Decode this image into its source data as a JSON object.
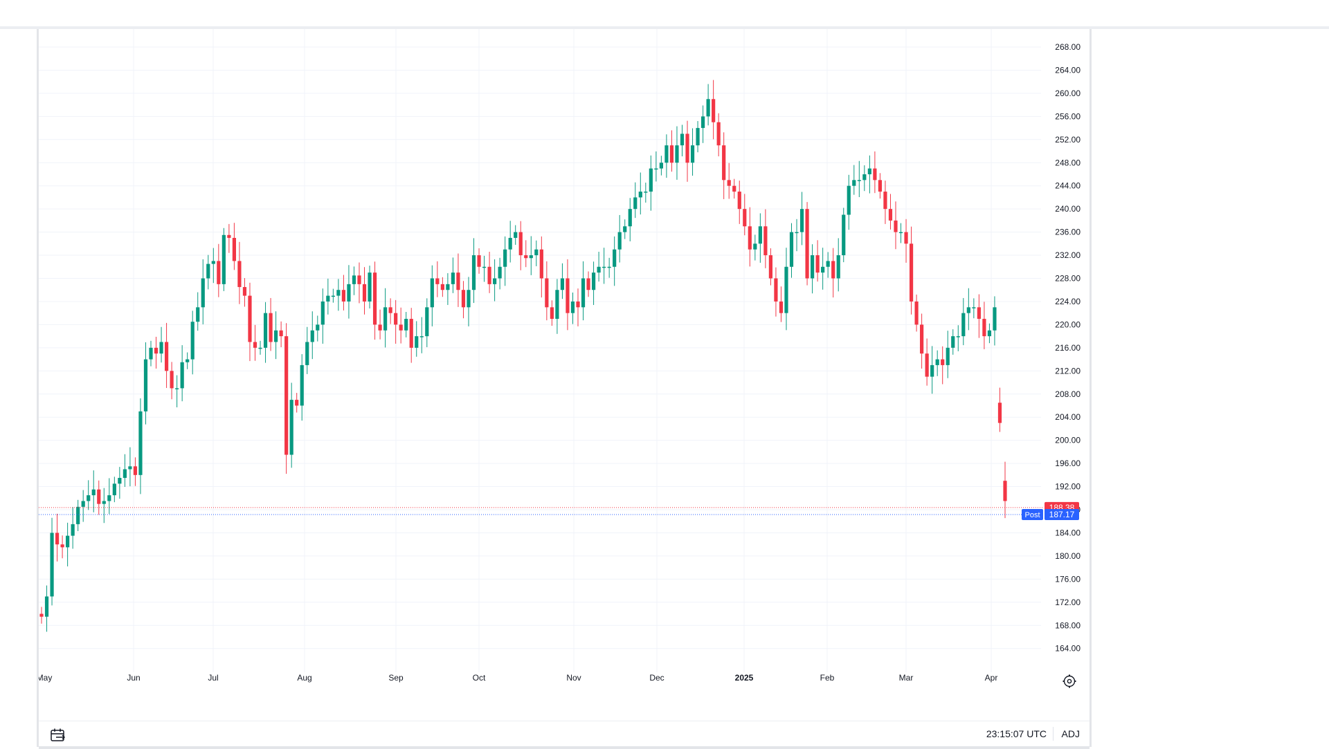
{
  "footer": {
    "clock": "23:15:07 UTC",
    "adj_label": "ADJ"
  },
  "colors": {
    "up": "#089981",
    "down": "#f23645",
    "post": "#2962ff",
    "grid": "#f0f3fa",
    "text": "#131722"
  },
  "icons": {
    "date_range": "calendar-range-icon",
    "settings": "gear-icon"
  },
  "chart_data": {
    "type": "candlestick",
    "title": "",
    "ylim": [
      160,
      270
    ],
    "grid": true,
    "y_ticks": [
      "268.00",
      "264.00",
      "260.00",
      "256.00",
      "252.00",
      "248.00",
      "244.00",
      "240.00",
      "236.00",
      "232.00",
      "228.00",
      "224.00",
      "220.00",
      "216.00",
      "212.00",
      "208.00",
      "204.00",
      "200.00",
      "196.00",
      "192.00",
      "188.00",
      "184.00",
      "180.00",
      "176.00",
      "172.00",
      "168.00",
      "164.00"
    ],
    "x_ticks": [
      {
        "label": "May",
        "bold": false
      },
      {
        "label": "Jun",
        "bold": false
      },
      {
        "label": "Jul",
        "bold": false
      },
      {
        "label": "Aug",
        "bold": false
      },
      {
        "label": "Sep",
        "bold": false
      },
      {
        "label": "Oct",
        "bold": false
      },
      {
        "label": "Nov",
        "bold": false
      },
      {
        "label": "Dec",
        "bold": false
      },
      {
        "label": "2025",
        "bold": true
      },
      {
        "label": "Feb",
        "bold": false
      },
      {
        "label": "Mar",
        "bold": false
      },
      {
        "label": "Apr",
        "bold": false
      }
    ],
    "price_lines": [
      {
        "label": "",
        "value_text": "188.38",
        "value": 188.38,
        "color": "#f23645"
      },
      {
        "label": "Post",
        "value_text": "187.17",
        "value": 187.17,
        "color": "#2962ff"
      }
    ],
    "closes": [
      169.5,
      173,
      184,
      182,
      181.5,
      183.5,
      185.5,
      188.5,
      189.5,
      190.5,
      191.5,
      189,
      189.5,
      190.5,
      192.5,
      193.5,
      195,
      195.5,
      194,
      205,
      214,
      216,
      215,
      217,
      212,
      209,
      209,
      213.5,
      214,
      220.5,
      223,
      228,
      230.5,
      231,
      227,
      235.5,
      235,
      231,
      226.5,
      225,
      217,
      216,
      216,
      222,
      217,
      219,
      218,
      197.5,
      207,
      206,
      213,
      217,
      219,
      220,
      224,
      225,
      225,
      226,
      224,
      227,
      228.5,
      227,
      224,
      229,
      220,
      219,
      223,
      222,
      220,
      219,
      221,
      216,
      218,
      218,
      223,
      228,
      227,
      226,
      227,
      229,
      226,
      223,
      226,
      232,
      230,
      230,
      227,
      228,
      230,
      233,
      235,
      236,
      232,
      231.5,
      232,
      233,
      228,
      223,
      221,
      226,
      228,
      222,
      224,
      223,
      228,
      226,
      229,
      230,
      230,
      230,
      233,
      236,
      237,
      240,
      242,
      243,
      243,
      247,
      247,
      248,
      251,
      248,
      251,
      253,
      248,
      251,
      254,
      256,
      259,
      255,
      251,
      245,
      244,
      243,
      240,
      237,
      233,
      234,
      237,
      232,
      228,
      224,
      222,
      230,
      236,
      236,
      240,
      228,
      232,
      229,
      230,
      231,
      228,
      232,
      239,
      244,
      245,
      245,
      246,
      247,
      245,
      243,
      240,
      238,
      236,
      236,
      234,
      224,
      220,
      215,
      211,
      213,
      214,
      213,
      216,
      218,
      218,
      222,
      223,
      223,
      221,
      218,
      219,
      223,
      203,
      189.5
    ],
    "wicks": {
      "high": 260,
      "low": 162
    }
  }
}
